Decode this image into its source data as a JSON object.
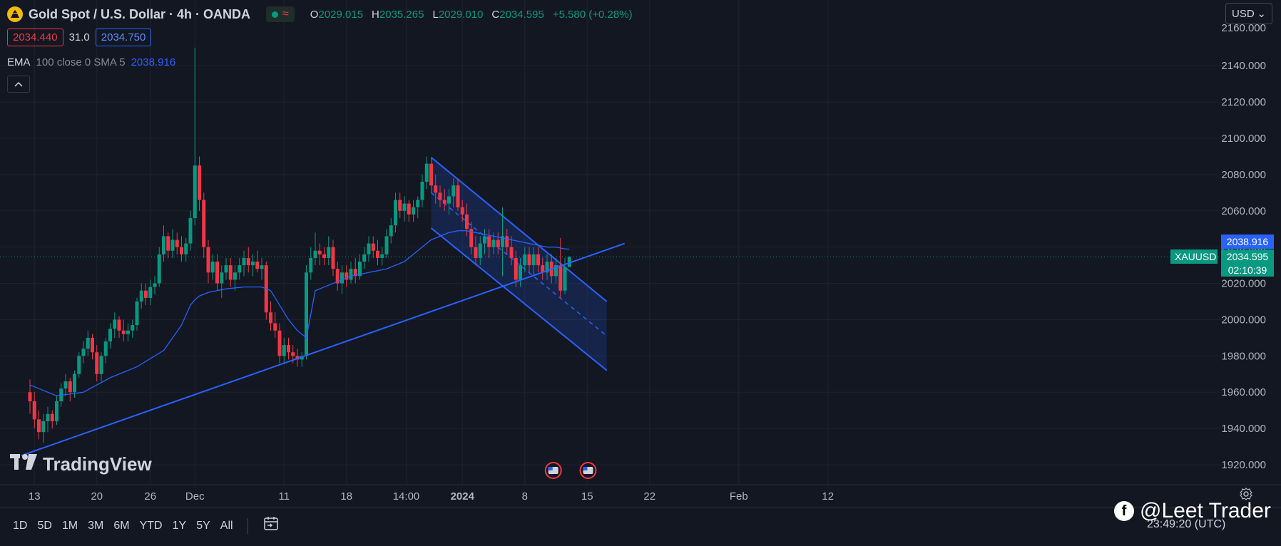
{
  "header": {
    "title": "Gold Spot / U.S. Dollar · 4h · OANDA",
    "status_wave": "≈",
    "ohlc": [
      {
        "k": "O",
        "v": "2029.015"
      },
      {
        "k": "H",
        "v": "2035.265"
      },
      {
        "k": "L",
        "v": "2029.010"
      },
      {
        "k": "C",
        "v": "2034.595"
      },
      {
        "k": "",
        "v": "+5.580 (+0.28%)"
      }
    ]
  },
  "prices": {
    "bid": "2034.440",
    "spread": "31.0",
    "ask": "2034.750"
  },
  "indicator": {
    "name": "EMA",
    "args": "100 close 0 SMA 5",
    "value": "2038.916"
  },
  "currency": {
    "label": "USD",
    "caret": "⌄"
  },
  "price_tags": {
    "ema": "2038.916",
    "symbol": "XAUUSD",
    "last": "2034.595",
    "countdown": "02:10:39"
  },
  "timeframes": [
    "1D",
    "5D",
    "1M",
    "3M",
    "6M",
    "YTD",
    "1Y",
    "5Y",
    "All"
  ],
  "watermark": "TradingView",
  "credit": "@Leet Trader",
  "clock": "23:49:20 (UTC)",
  "colors": {
    "up": "#089981",
    "down": "#f23645",
    "line": "#2962ff",
    "bg": "#131722",
    "grid": "#1e222d"
  },
  "chart_data": {
    "type": "candlestick",
    "symbol": "XAUUSD",
    "ylim": [
      1912,
      2164
    ],
    "yticks": [
      2140,
      2120,
      2100,
      2080,
      2060,
      2040,
      2020,
      2000,
      1980,
      1960,
      1940,
      1920
    ],
    "top_tick_label": "2160.000",
    "xticks": [
      {
        "label": "13",
        "x": 0.5
      },
      {
        "label": "20",
        "x": 7.5
      },
      {
        "label": "26",
        "x": 13.5
      },
      {
        "label": "Dec",
        "x": 18.5
      },
      {
        "label": "11",
        "x": 28.5
      },
      {
        "label": "18",
        "x": 35.5
      },
      {
        "label": "14:00",
        "x": 42.2
      },
      {
        "label": "2024",
        "x": 48.5
      },
      {
        "label": "8",
        "x": 55.5
      },
      {
        "label": "15",
        "x": 62.5
      },
      {
        "label": "22",
        "x": 69.5
      },
      {
        "label": "Feb",
        "x": 79.5
      },
      {
        "label": "12",
        "x": 89.5
      }
    ],
    "candles": [
      {
        "x": 0.0,
        "o": 1960,
        "h": 1967,
        "l": 1948,
        "c": 1955
      },
      {
        "x": 0.5,
        "o": 1955,
        "h": 1960,
        "l": 1940,
        "c": 1945
      },
      {
        "x": 1.0,
        "o": 1945,
        "h": 1950,
        "l": 1934,
        "c": 1938
      },
      {
        "x": 1.5,
        "o": 1938,
        "h": 1948,
        "l": 1932,
        "c": 1944
      },
      {
        "x": 2.0,
        "o": 1944,
        "h": 1952,
        "l": 1938,
        "c": 1948
      },
      {
        "x": 2.5,
        "o": 1948,
        "h": 1950,
        "l": 1940,
        "c": 1944
      },
      {
        "x": 3.0,
        "o": 1944,
        "h": 1958,
        "l": 1942,
        "c": 1955
      },
      {
        "x": 3.5,
        "o": 1955,
        "h": 1965,
        "l": 1952,
        "c": 1962
      },
      {
        "x": 4.0,
        "o": 1962,
        "h": 1970,
        "l": 1958,
        "c": 1966
      },
      {
        "x": 4.5,
        "o": 1966,
        "h": 1968,
        "l": 1955,
        "c": 1960
      },
      {
        "x": 5.0,
        "o": 1960,
        "h": 1972,
        "l": 1957,
        "c": 1970
      },
      {
        "x": 5.5,
        "o": 1970,
        "h": 1982,
        "l": 1968,
        "c": 1980
      },
      {
        "x": 6.0,
        "o": 1980,
        "h": 1988,
        "l": 1976,
        "c": 1984
      },
      {
        "x": 6.5,
        "o": 1984,
        "h": 1994,
        "l": 1980,
        "c": 1990
      },
      {
        "x": 7.0,
        "o": 1990,
        "h": 1992,
        "l": 1978,
        "c": 1982
      },
      {
        "x": 7.5,
        "o": 1982,
        "h": 1986,
        "l": 1966,
        "c": 1970
      },
      {
        "x": 8.0,
        "o": 1970,
        "h": 1982,
        "l": 1966,
        "c": 1980
      },
      {
        "x": 8.5,
        "o": 1980,
        "h": 1990,
        "l": 1976,
        "c": 1988
      },
      {
        "x": 9.0,
        "o": 1988,
        "h": 1998,
        "l": 1984,
        "c": 1995
      },
      {
        "x": 9.5,
        "o": 1995,
        "h": 2004,
        "l": 1990,
        "c": 2000
      },
      {
        "x": 10.0,
        "o": 2000,
        "h": 2002,
        "l": 1990,
        "c": 1994
      },
      {
        "x": 10.5,
        "o": 1994,
        "h": 2000,
        "l": 1988,
        "c": 1992
      },
      {
        "x": 11.0,
        "o": 1992,
        "h": 1998,
        "l": 1988,
        "c": 1994
      },
      {
        "x": 11.5,
        "o": 1994,
        "h": 2000,
        "l": 1990,
        "c": 1997
      },
      {
        "x": 12.0,
        "o": 1997,
        "h": 2012,
        "l": 1994,
        "c": 2010
      },
      {
        "x": 12.5,
        "o": 2010,
        "h": 2020,
        "l": 2006,
        "c": 2016
      },
      {
        "x": 13.0,
        "o": 2016,
        "h": 2020,
        "l": 2008,
        "c": 2012
      },
      {
        "x": 13.5,
        "o": 2012,
        "h": 2022,
        "l": 2008,
        "c": 2018
      },
      {
        "x": 14.0,
        "o": 2018,
        "h": 2024,
        "l": 2014,
        "c": 2020
      },
      {
        "x": 14.5,
        "o": 2020,
        "h": 2040,
        "l": 2018,
        "c": 2036
      },
      {
        "x": 15.0,
        "o": 2036,
        "h": 2052,
        "l": 2032,
        "c": 2046
      },
      {
        "x": 15.5,
        "o": 2046,
        "h": 2048,
        "l": 2034,
        "c": 2038
      },
      {
        "x": 16.0,
        "o": 2038,
        "h": 2050,
        "l": 2034,
        "c": 2044
      },
      {
        "x": 16.5,
        "o": 2044,
        "h": 2048,
        "l": 2036,
        "c": 2040
      },
      {
        "x": 17.0,
        "o": 2040,
        "h": 2046,
        "l": 2032,
        "c": 2036
      },
      {
        "x": 17.5,
        "o": 2036,
        "h": 2045,
        "l": 2032,
        "c": 2042
      },
      {
        "x": 18.0,
        "o": 2042,
        "h": 2060,
        "l": 2038,
        "c": 2056
      },
      {
        "x": 18.5,
        "o": 2056,
        "h": 2150,
        "l": 2052,
        "c": 2085
      },
      {
        "x": 19.0,
        "o": 2085,
        "h": 2090,
        "l": 2060,
        "c": 2066
      },
      {
        "x": 19.5,
        "o": 2066,
        "h": 2070,
        "l": 2034,
        "c": 2040
      },
      {
        "x": 20.0,
        "o": 2040,
        "h": 2044,
        "l": 2020,
        "c": 2026
      },
      {
        "x": 20.5,
        "o": 2026,
        "h": 2036,
        "l": 2022,
        "c": 2032
      },
      {
        "x": 21.0,
        "o": 2032,
        "h": 2036,
        "l": 2016,
        "c": 2020
      },
      {
        "x": 21.5,
        "o": 2020,
        "h": 2030,
        "l": 2012,
        "c": 2026
      },
      {
        "x": 22.0,
        "o": 2026,
        "h": 2034,
        "l": 2022,
        "c": 2030
      },
      {
        "x": 22.5,
        "o": 2030,
        "h": 2034,
        "l": 2018,
        "c": 2022
      },
      {
        "x": 23.0,
        "o": 2022,
        "h": 2030,
        "l": 2016,
        "c": 2026
      },
      {
        "x": 23.5,
        "o": 2026,
        "h": 2034,
        "l": 2022,
        "c": 2030
      },
      {
        "x": 24.0,
        "o": 2030,
        "h": 2038,
        "l": 2024,
        "c": 2034
      },
      {
        "x": 24.5,
        "o": 2034,
        "h": 2040,
        "l": 2026,
        "c": 2030
      },
      {
        "x": 25.0,
        "o": 2030,
        "h": 2036,
        "l": 2024,
        "c": 2032
      },
      {
        "x": 25.5,
        "o": 2032,
        "h": 2038,
        "l": 2026,
        "c": 2028
      },
      {
        "x": 26.0,
        "o": 2028,
        "h": 2034,
        "l": 2022,
        "c": 2030
      },
      {
        "x": 26.5,
        "o": 2030,
        "h": 2032,
        "l": 2000,
        "c": 2004
      },
      {
        "x": 27.0,
        "o": 2004,
        "h": 2010,
        "l": 1994,
        "c": 1998
      },
      {
        "x": 27.5,
        "o": 1998,
        "h": 2004,
        "l": 1990,
        "c": 1994
      },
      {
        "x": 28.0,
        "o": 1994,
        "h": 1998,
        "l": 1976,
        "c": 1980
      },
      {
        "x": 28.5,
        "o": 1980,
        "h": 1990,
        "l": 1976,
        "c": 1986
      },
      {
        "x": 29.0,
        "o": 1986,
        "h": 1990,
        "l": 1978,
        "c": 1982
      },
      {
        "x": 29.5,
        "o": 1982,
        "h": 1986,
        "l": 1976,
        "c": 1980
      },
      {
        "x": 30.0,
        "o": 1980,
        "h": 1984,
        "l": 1974,
        "c": 1978
      },
      {
        "x": 30.5,
        "o": 1978,
        "h": 1982,
        "l": 1974,
        "c": 1980
      },
      {
        "x": 31.0,
        "o": 1980,
        "h": 2030,
        "l": 1978,
        "c": 2026
      },
      {
        "x": 31.5,
        "o": 2026,
        "h": 2040,
        "l": 2022,
        "c": 2034
      },
      {
        "x": 32.0,
        "o": 2034,
        "h": 2048,
        "l": 2030,
        "c": 2038
      },
      {
        "x": 32.5,
        "o": 2038,
        "h": 2042,
        "l": 2030,
        "c": 2036
      },
      {
        "x": 33.0,
        "o": 2036,
        "h": 2040,
        "l": 2030,
        "c": 2034
      },
      {
        "x": 33.5,
        "o": 2034,
        "h": 2046,
        "l": 2030,
        "c": 2040
      },
      {
        "x": 34.0,
        "o": 2040,
        "h": 2044,
        "l": 2024,
        "c": 2028
      },
      {
        "x": 34.5,
        "o": 2028,
        "h": 2032,
        "l": 2016,
        "c": 2020
      },
      {
        "x": 35.0,
        "o": 2020,
        "h": 2030,
        "l": 2014,
        "c": 2026
      },
      {
        "x": 35.5,
        "o": 2026,
        "h": 2030,
        "l": 2018,
        "c": 2022
      },
      {
        "x": 36.0,
        "o": 2022,
        "h": 2032,
        "l": 2020,
        "c": 2028
      },
      {
        "x": 36.5,
        "o": 2028,
        "h": 2034,
        "l": 2020,
        "c": 2024
      },
      {
        "x": 37.0,
        "o": 2024,
        "h": 2036,
        "l": 2022,
        "c": 2032
      },
      {
        "x": 37.5,
        "o": 2032,
        "h": 2040,
        "l": 2028,
        "c": 2036
      },
      {
        "x": 38.0,
        "o": 2036,
        "h": 2046,
        "l": 2032,
        "c": 2042
      },
      {
        "x": 38.5,
        "o": 2042,
        "h": 2046,
        "l": 2034,
        "c": 2038
      },
      {
        "x": 39.0,
        "o": 2038,
        "h": 2044,
        "l": 2030,
        "c": 2034
      },
      {
        "x": 39.5,
        "o": 2034,
        "h": 2040,
        "l": 2030,
        "c": 2036
      },
      {
        "x": 40.0,
        "o": 2036,
        "h": 2050,
        "l": 2034,
        "c": 2046
      },
      {
        "x": 40.5,
        "o": 2046,
        "h": 2056,
        "l": 2042,
        "c": 2052
      },
      {
        "x": 41.0,
        "o": 2052,
        "h": 2070,
        "l": 2048,
        "c": 2066
      },
      {
        "x": 41.5,
        "o": 2066,
        "h": 2070,
        "l": 2056,
        "c": 2060
      },
      {
        "x": 42.0,
        "o": 2060,
        "h": 2068,
        "l": 2054,
        "c": 2064
      },
      {
        "x": 42.5,
        "o": 2064,
        "h": 2066,
        "l": 2054,
        "c": 2058
      },
      {
        "x": 43.0,
        "o": 2058,
        "h": 2066,
        "l": 2054,
        "c": 2062
      },
      {
        "x": 43.5,
        "o": 2062,
        "h": 2068,
        "l": 2056,
        "c": 2066
      },
      {
        "x": 44.0,
        "o": 2066,
        "h": 2080,
        "l": 2062,
        "c": 2076
      },
      {
        "x": 44.5,
        "o": 2076,
        "h": 2090,
        "l": 2072,
        "c": 2086
      },
      {
        "x": 45.0,
        "o": 2086,
        "h": 2089,
        "l": 2070,
        "c": 2074
      },
      {
        "x": 45.5,
        "o": 2074,
        "h": 2080,
        "l": 2064,
        "c": 2070
      },
      {
        "x": 46.0,
        "o": 2070,
        "h": 2074,
        "l": 2062,
        "c": 2066
      },
      {
        "x": 46.5,
        "o": 2066,
        "h": 2072,
        "l": 2060,
        "c": 2064
      },
      {
        "x": 47.0,
        "o": 2064,
        "h": 2072,
        "l": 2058,
        "c": 2068
      },
      {
        "x": 47.5,
        "o": 2068,
        "h": 2078,
        "l": 2062,
        "c": 2074
      },
      {
        "x": 48.0,
        "o": 2074,
        "h": 2078,
        "l": 2060,
        "c": 2062
      },
      {
        "x": 48.5,
        "o": 2062,
        "h": 2066,
        "l": 2054,
        "c": 2058
      },
      {
        "x": 49.0,
        "o": 2058,
        "h": 2064,
        "l": 2046,
        "c": 2050
      },
      {
        "x": 49.5,
        "o": 2050,
        "h": 2054,
        "l": 2036,
        "c": 2040
      },
      {
        "x": 50.0,
        "o": 2040,
        "h": 2046,
        "l": 2030,
        "c": 2034
      },
      {
        "x": 50.5,
        "o": 2034,
        "h": 2046,
        "l": 2030,
        "c": 2042
      },
      {
        "x": 51.0,
        "o": 2042,
        "h": 2050,
        "l": 2036,
        "c": 2046
      },
      {
        "x": 51.5,
        "o": 2046,
        "h": 2050,
        "l": 2034,
        "c": 2040
      },
      {
        "x": 52.0,
        "o": 2040,
        "h": 2048,
        "l": 2036,
        "c": 2044
      },
      {
        "x": 52.5,
        "o": 2044,
        "h": 2048,
        "l": 2036,
        "c": 2040
      },
      {
        "x": 53.0,
        "o": 2040,
        "h": 2062,
        "l": 2024,
        "c": 2046
      },
      {
        "x": 53.5,
        "o": 2046,
        "h": 2050,
        "l": 2036,
        "c": 2040
      },
      {
        "x": 54.0,
        "o": 2040,
        "h": 2046,
        "l": 2030,
        "c": 2034
      },
      {
        "x": 54.5,
        "o": 2034,
        "h": 2038,
        "l": 2018,
        "c": 2022
      },
      {
        "x": 55.0,
        "o": 2022,
        "h": 2034,
        "l": 2018,
        "c": 2030
      },
      {
        "x": 55.5,
        "o": 2030,
        "h": 2040,
        "l": 2026,
        "c": 2036
      },
      {
        "x": 56.0,
        "o": 2036,
        "h": 2040,
        "l": 2026,
        "c": 2030
      },
      {
        "x": 56.5,
        "o": 2030,
        "h": 2040,
        "l": 2024,
        "c": 2036
      },
      {
        "x": 57.0,
        "o": 2036,
        "h": 2040,
        "l": 2026,
        "c": 2030
      },
      {
        "x": 57.5,
        "o": 2030,
        "h": 2034,
        "l": 2022,
        "c": 2026
      },
      {
        "x": 58.0,
        "o": 2026,
        "h": 2036,
        "l": 2022,
        "c": 2032
      },
      {
        "x": 58.5,
        "o": 2032,
        "h": 2036,
        "l": 2020,
        "c": 2024
      },
      {
        "x": 59.0,
        "o": 2024,
        "h": 2034,
        "l": 2020,
        "c": 2030
      },
      {
        "x": 59.5,
        "o": 2030,
        "h": 2045,
        "l": 2012,
        "c": 2016
      },
      {
        "x": 60.0,
        "o": 2016,
        "h": 2034,
        "l": 2014,
        "c": 2029
      },
      {
        "x": 60.5,
        "o": 2029,
        "h": 2035,
        "l": 2029,
        "c": 2034.6
      }
    ],
    "ema": {
      "x": [
        0,
        3,
        6,
        9,
        12,
        15,
        17,
        18,
        18.5,
        19,
        20,
        22,
        24,
        26,
        27,
        28,
        29,
        30,
        31,
        32,
        34,
        36,
        38,
        40,
        42,
        44,
        45,
        46,
        47,
        48,
        49,
        50,
        51,
        52,
        53,
        54,
        55,
        56,
        57,
        58,
        59,
        60,
        60.5
      ],
      "y": [
        1964,
        1958,
        1960,
        1968,
        1974,
        1983,
        1997,
        2008,
        2011,
        2013,
        2015,
        2017,
        2018,
        2018,
        2016,
        2008,
        2000,
        1994,
        1990,
        2016,
        2020,
        2024,
        2026,
        2028,
        2032,
        2040,
        2044,
        2046,
        2048,
        2049,
        2049,
        2048,
        2047,
        2046,
        2045,
        2044,
        2043,
        2042,
        2041,
        2040,
        2040,
        2039,
        2038.9
      ]
    },
    "trendline": {
      "x1": -1,
      "y1": 1925,
      "x2": 66.7,
      "y2": 2042
    },
    "channel": {
      "upper": {
        "x1": 45,
        "y1": 2089.5,
        "x2": 64.7,
        "y2": 2010
      },
      "lower": {
        "x1": 45,
        "y1": 2050.5,
        "x2": 64.7,
        "y2": 1972
      },
      "mid": {
        "x1": 45,
        "y1": 2070,
        "x2": 64.7,
        "y2": 1991
      }
    },
    "events": [
      {
        "x": 58.7,
        "kind": "flag-us"
      },
      {
        "x": 62.6,
        "kind": "flag-us"
      }
    ]
  }
}
